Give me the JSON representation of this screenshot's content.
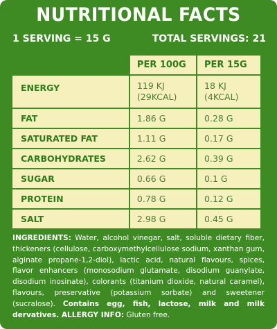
{
  "title": "NUTRITIONAL FACTS",
  "serving": {
    "serving_size": "1 SERVING = 15 G",
    "total_servings": "TOTAL SERVINGS: 21"
  },
  "table": {
    "headers": [
      "PER 100G",
      "PER 15G"
    ],
    "rows": [
      {
        "label": "ENERGY",
        "per100": "119 KJ\n(29KCAL)",
        "per15": "18 KJ\n(4KCAL)"
      },
      {
        "label": "FAT",
        "per100": "1.86 G",
        "per15": "0.28 G"
      },
      {
        "label": "SATURATED FAT",
        "per100": "1.11 G",
        "per15": "0.17 G"
      },
      {
        "label": "CARBOHYDRATES",
        "per100": "2.62 G",
        "per15": "0.39 G"
      },
      {
        "label": "SUGAR",
        "per100": "0.66 G",
        "per15": "0.1 G"
      },
      {
        "label": "PROTEIN",
        "per100": "0.78 G",
        "per15": "0.12 G"
      },
      {
        "label": "SALT",
        "per100": "2.98 G",
        "per15": "0.45 G"
      }
    ]
  },
  "ingredients": {
    "heading": "INGREDIENTS:",
    "text": " Water, alcohol vinegar, salt, soluble dietary fiber, thickeners (cellulose, carboxymethylcellulose sodium, xanthan gum, alginate propane-1,2-diol), lactic acid, natural flavours, spices, flavor enhancers (monosodium glutamate, disodium guanylate, disodium inosinate), colorants (titanium dioxide, natural caramel), flavours, preservative (potassium sorbate) and sweetener (sucralose). ",
    "allergen_statement": "Contains egg, fish, lactose, milk and milk dervatives.",
    "allergy_heading": " ALLERGY INFO:",
    "allergy_text": " Gluten free."
  },
  "colors": {
    "background": "#3e8a23",
    "cell": "#f6f0bd",
    "label_text": "#2f7a1a",
    "value_text": "#4a7d3a"
  }
}
